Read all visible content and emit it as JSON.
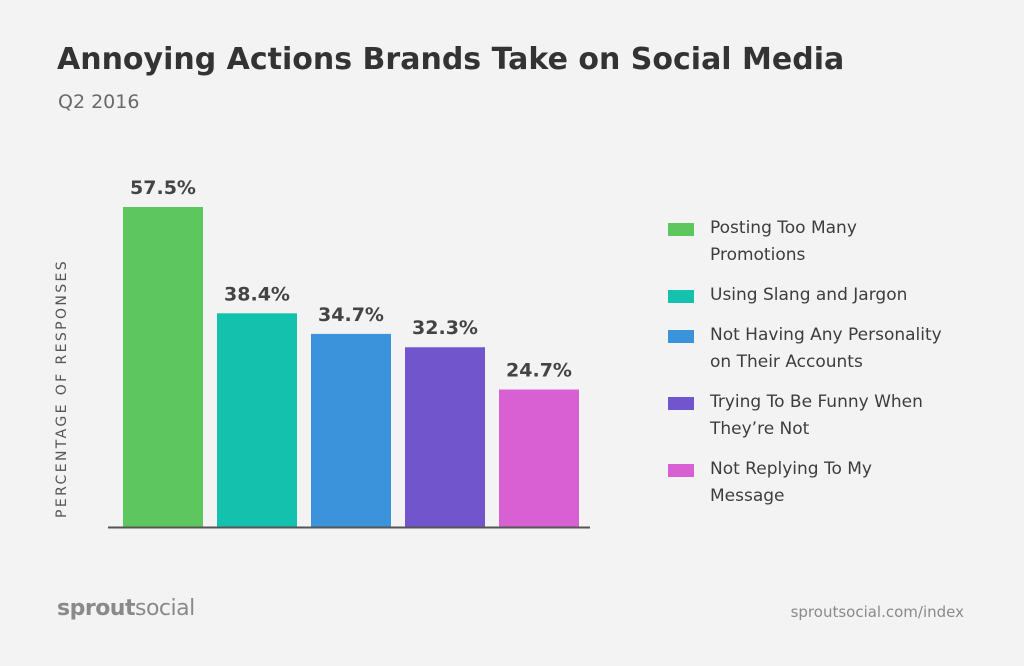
{
  "chart_data": {
    "type": "bar",
    "title": "Annoying Actions Brands Take on Social Media",
    "subtitle": "Q2 2016",
    "ylabel": "PERCENTAGE OF RESPONSES",
    "xlabel": "",
    "categories": [
      "Posting Too Many Promotions",
      "Using Slang and Jargon",
      "Not Having Any Personality on Their Accounts",
      "Trying To Be Funny When They’re Not",
      "Not Replying To My Message"
    ],
    "values": [
      57.5,
      38.4,
      34.7,
      32.3,
      24.7
    ],
    "value_labels": [
      "57.5%",
      "38.4%",
      "34.7%",
      "32.3%",
      "24.7%"
    ],
    "colors": [
      "#5ec65f",
      "#13c1ad",
      "#3b93dc",
      "#7155cc",
      "#d860d2"
    ],
    "ylim": [
      0,
      57.5
    ],
    "grid": false,
    "legend_position": "right"
  },
  "legend": {
    "items": [
      {
        "line1": "Posting Too Many",
        "line2": "Promotions"
      },
      {
        "line1": "Using Slang and Jargon",
        "line2": ""
      },
      {
        "line1": "Not Having Any Personality",
        "line2": "on Their Accounts"
      },
      {
        "line1": "Trying To Be Funny When",
        "line2": "They’re Not"
      },
      {
        "line1": "Not Replying To My",
        "line2": "Message"
      }
    ]
  },
  "footer": {
    "brand_bold": "sprout",
    "brand_regular": "social",
    "source": "sproutsocial.com/index"
  }
}
